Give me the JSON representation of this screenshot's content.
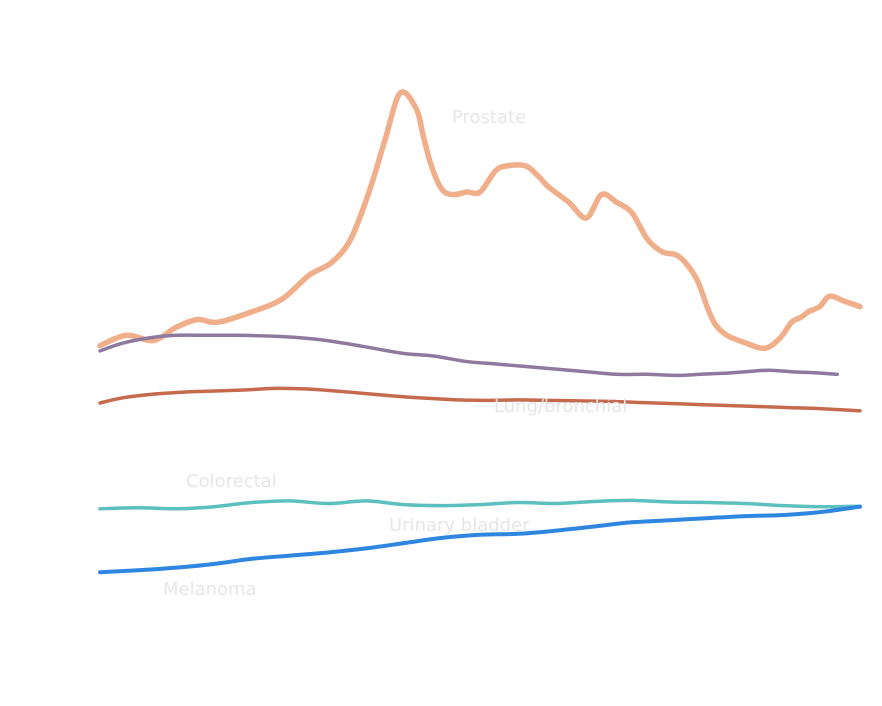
{
  "chart_data": {
    "type": "line",
    "title": "",
    "xlabel": "",
    "ylabel": "",
    "grid": false,
    "legend": "none",
    "xlim": [
      0,
      100
    ],
    "ylim": [
      0,
      100
    ],
    "series": [
      {
        "name": "Prostate",
        "color": "#F0AF8A",
        "x": [
          0,
          3.5,
          7,
          10,
          12.8,
          15.5,
          20,
          24,
          27.5,
          30.5,
          33,
          35.4,
          37.5,
          39.5,
          41.6,
          42.5,
          43.6,
          45,
          46.5,
          48.3,
          50,
          52,
          53.5,
          56,
          57.7,
          59,
          61.7,
          64,
          66,
          68,
          70,
          72,
          74,
          75.7,
          77,
          78.6,
          80,
          81,
          82.5,
          85,
          87.5,
          89.5,
          91,
          92.3,
          93.2,
          94.7,
          96,
          98,
          100
        ],
        "y": [
          51.5,
          53.5,
          52.5,
          55,
          56.5,
          56,
          58,
          60.5,
          65,
          67.5,
          72,
          81,
          91,
          100,
          97,
          92,
          86,
          81.5,
          80.5,
          81,
          81,
          85,
          86,
          86,
          84,
          82,
          79,
          76,
          80.5,
          79,
          77,
          72,
          69.5,
          69,
          67.5,
          64,
          58.5,
          55.5,
          53.5,
          52,
          51,
          53,
          56,
          57,
          58,
          59,
          61,
          60,
          59
        ]
      },
      {
        "name": "Lung/bronchial",
        "color": "#8E7A9E",
        "x": [
          0,
          3,
          6.5,
          10,
          14,
          18,
          23,
          28,
          32,
          36,
          40,
          44,
          48,
          52,
          56,
          60,
          64,
          68,
          72,
          76,
          79,
          82,
          85,
          88,
          91,
          94,
          97
        ],
        "y": [
          50.5,
          52,
          53,
          53.5,
          53.5,
          53.5,
          53.3,
          52.8,
          52,
          51,
          50,
          49.5,
          48.5,
          48,
          47.5,
          47,
          46.5,
          46,
          46,
          45.8,
          46,
          46.2,
          46.5,
          46.8,
          46.5,
          46.3,
          46
        ]
      },
      {
        "name": "Colorectal",
        "color": "#C66A4E",
        "x": [
          0,
          3,
          7,
          11,
          15,
          19,
          23,
          27,
          31,
          35,
          39,
          43,
          47,
          51,
          55,
          59,
          63,
          67,
          71,
          75,
          79,
          83,
          87,
          91,
          95,
          100
        ],
        "y": [
          40.5,
          41.5,
          42.2,
          42.6,
          42.8,
          43,
          43.3,
          43.2,
          42.8,
          42.3,
          41.8,
          41.4,
          41.1,
          41,
          41.1,
          41,
          40.9,
          40.8,
          40.6,
          40.4,
          40.2,
          40,
          39.8,
          39.6,
          39.4,
          39
        ]
      },
      {
        "name": "Urinary bladder",
        "color": "#5CC0BE",
        "x": [
          0,
          5,
          10,
          15,
          20,
          25,
          30,
          35,
          40,
          45,
          50,
          55,
          60,
          65,
          70,
          75,
          80,
          85,
          90,
          95,
          100
        ],
        "y": [
          20.2,
          20.4,
          20.2,
          20.6,
          21.4,
          21.7,
          21.2,
          21.7,
          21,
          20.8,
          21,
          21.4,
          21.2,
          21.6,
          21.8,
          21.5,
          21.4,
          21.2,
          20.8,
          20.6,
          20.7
        ]
      },
      {
        "name": "Melanoma",
        "color": "#2E86E0",
        "x": [
          0,
          5,
          10,
          15,
          20,
          25,
          30,
          35,
          40,
          45,
          50,
          55,
          60,
          65,
          70,
          75,
          80,
          85,
          90,
          95,
          100
        ],
        "y": [
          8,
          8.4,
          8.9,
          9.6,
          10.6,
          11.2,
          11.8,
          12.6,
          13.6,
          14.6,
          15.2,
          15.4,
          16,
          16.8,
          17.6,
          18,
          18.4,
          18.8,
          19,
          19.6,
          20.6
        ]
      }
    ]
  }
}
